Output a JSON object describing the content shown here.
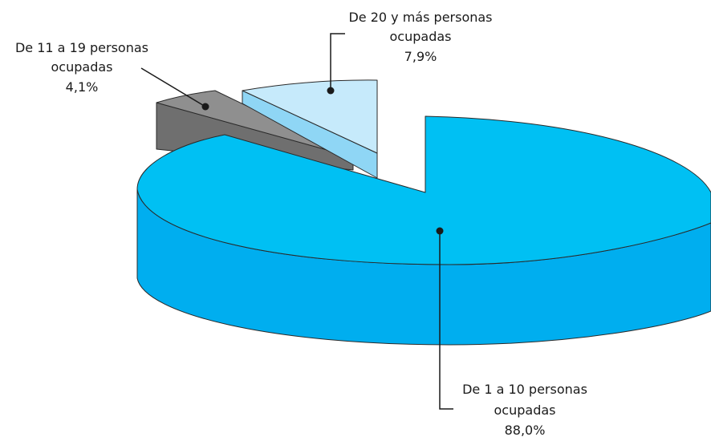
{
  "chart_data": {
    "type": "pie",
    "style": "3d-exploded",
    "title": "",
    "slices": [
      {
        "label_lines": [
          "De 1 a 10 personas",
          "ocupadas"
        ],
        "value": 88.0,
        "value_label": "88,0%",
        "color": "#00c0f3",
        "side_color": "#00aeef"
      },
      {
        "label_lines": [
          "De 11 a 19 personas",
          "ocupadas"
        ],
        "value": 4.1,
        "value_label": "4,1%",
        "color": "#8f8f8f",
        "side_color": "#6f6f6f"
      },
      {
        "label_lines": [
          "De 20 y más personas",
          "ocupadas"
        ],
        "value": 7.9,
        "value_label": "7,9%",
        "color": "#c6eafb",
        "side_color": "#8fd6f5"
      }
    ]
  }
}
